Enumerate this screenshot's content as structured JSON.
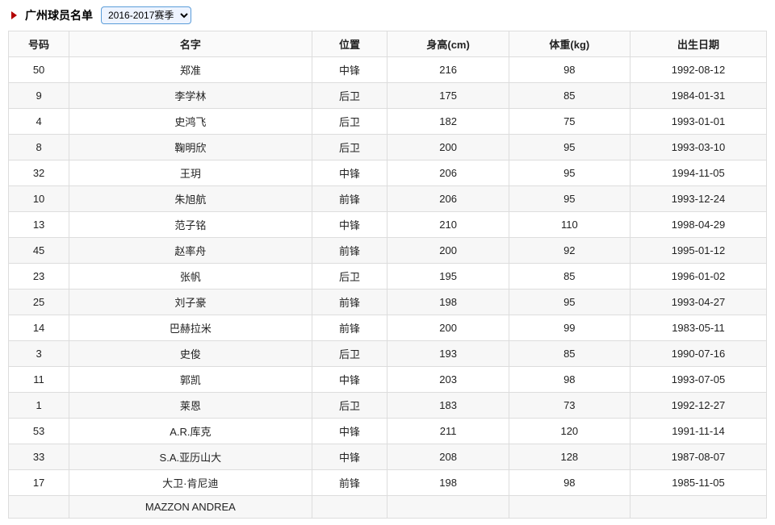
{
  "header": {
    "title": "广州球员名单",
    "season_selected": "2016-2017赛季"
  },
  "colors": {
    "triangle": "#b30000",
    "border": "#dddddd",
    "row_alt_bg": "#f7f7f7",
    "header_bg": "#fafafa"
  },
  "table": {
    "columns": [
      "号码",
      "名字",
      "位置",
      "身高(cm)",
      "体重(kg)",
      "出生日期"
    ],
    "rows": [
      [
        "50",
        "郑准",
        "中锋",
        "216",
        "98",
        "1992-08-12"
      ],
      [
        "9",
        "李学林",
        "后卫",
        "175",
        "85",
        "1984-01-31"
      ],
      [
        "4",
        "史鸿飞",
        "后卫",
        "182",
        "75",
        "1993-01-01"
      ],
      [
        "8",
        "鞠明欣",
        "后卫",
        "200",
        "95",
        "1993-03-10"
      ],
      [
        "32",
        "王玥",
        "中锋",
        "206",
        "95",
        "1994-11-05"
      ],
      [
        "10",
        "朱旭航",
        "前锋",
        "206",
        "95",
        "1993-12-24"
      ],
      [
        "13",
        "范子铭",
        "中锋",
        "210",
        "110",
        "1998-04-29"
      ],
      [
        "45",
        "赵率舟",
        "前锋",
        "200",
        "92",
        "1995-01-12"
      ],
      [
        "23",
        "张帆",
        "后卫",
        "195",
        "85",
        "1996-01-02"
      ],
      [
        "25",
        "刘子豪",
        "前锋",
        "198",
        "95",
        "1993-04-27"
      ],
      [
        "14",
        "巴赫拉米",
        "前锋",
        "200",
        "99",
        "1983-05-11"
      ],
      [
        "3",
        "史俊",
        "后卫",
        "193",
        "85",
        "1990-07-16"
      ],
      [
        "11",
        "郭凯",
        "中锋",
        "203",
        "98",
        "1993-07-05"
      ],
      [
        "1",
        "莱恩",
        "后卫",
        "183",
        "73",
        "1992-12-27"
      ],
      [
        "53",
        "A.R.库克",
        "中锋",
        "211",
        "120",
        "1991-11-14"
      ],
      [
        "33",
        "S.A.亚历山大",
        "中锋",
        "208",
        "128",
        "1987-08-07"
      ],
      [
        "17",
        "大卫·肯尼迪",
        "前锋",
        "198",
        "98",
        "1985-11-05"
      ],
      [
        "",
        "MAZZON ANDREA",
        "",
        "",
        "",
        ""
      ]
    ]
  }
}
